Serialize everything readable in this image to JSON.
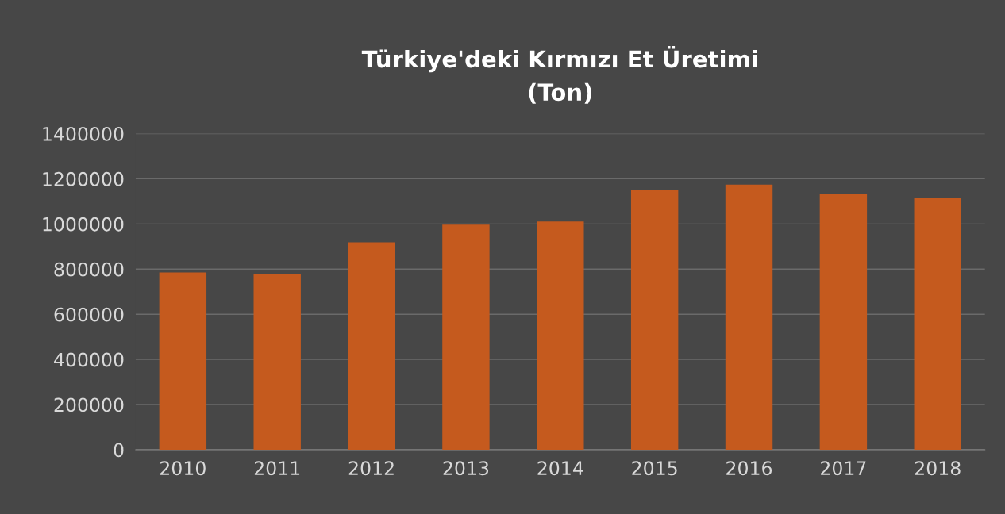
{
  "chart_data": {
    "type": "bar",
    "title": "Türkiye'deki Kırmızı Et Üretimi\n(Ton)",
    "categories": [
      "2010",
      "2011",
      "2012",
      "2013",
      "2014",
      "2015",
      "2016",
      "2017",
      "2018"
    ],
    "values": [
      785000,
      778000,
      919000,
      997000,
      1011000,
      1152000,
      1174000,
      1131000,
      1117000
    ],
    "color": "#c55a1e",
    "ylim": [
      0,
      1400000
    ],
    "yticks": [
      0,
      200000,
      400000,
      600000,
      800000,
      1000000,
      1200000,
      1400000
    ],
    "grid": "y",
    "legend": false
  }
}
